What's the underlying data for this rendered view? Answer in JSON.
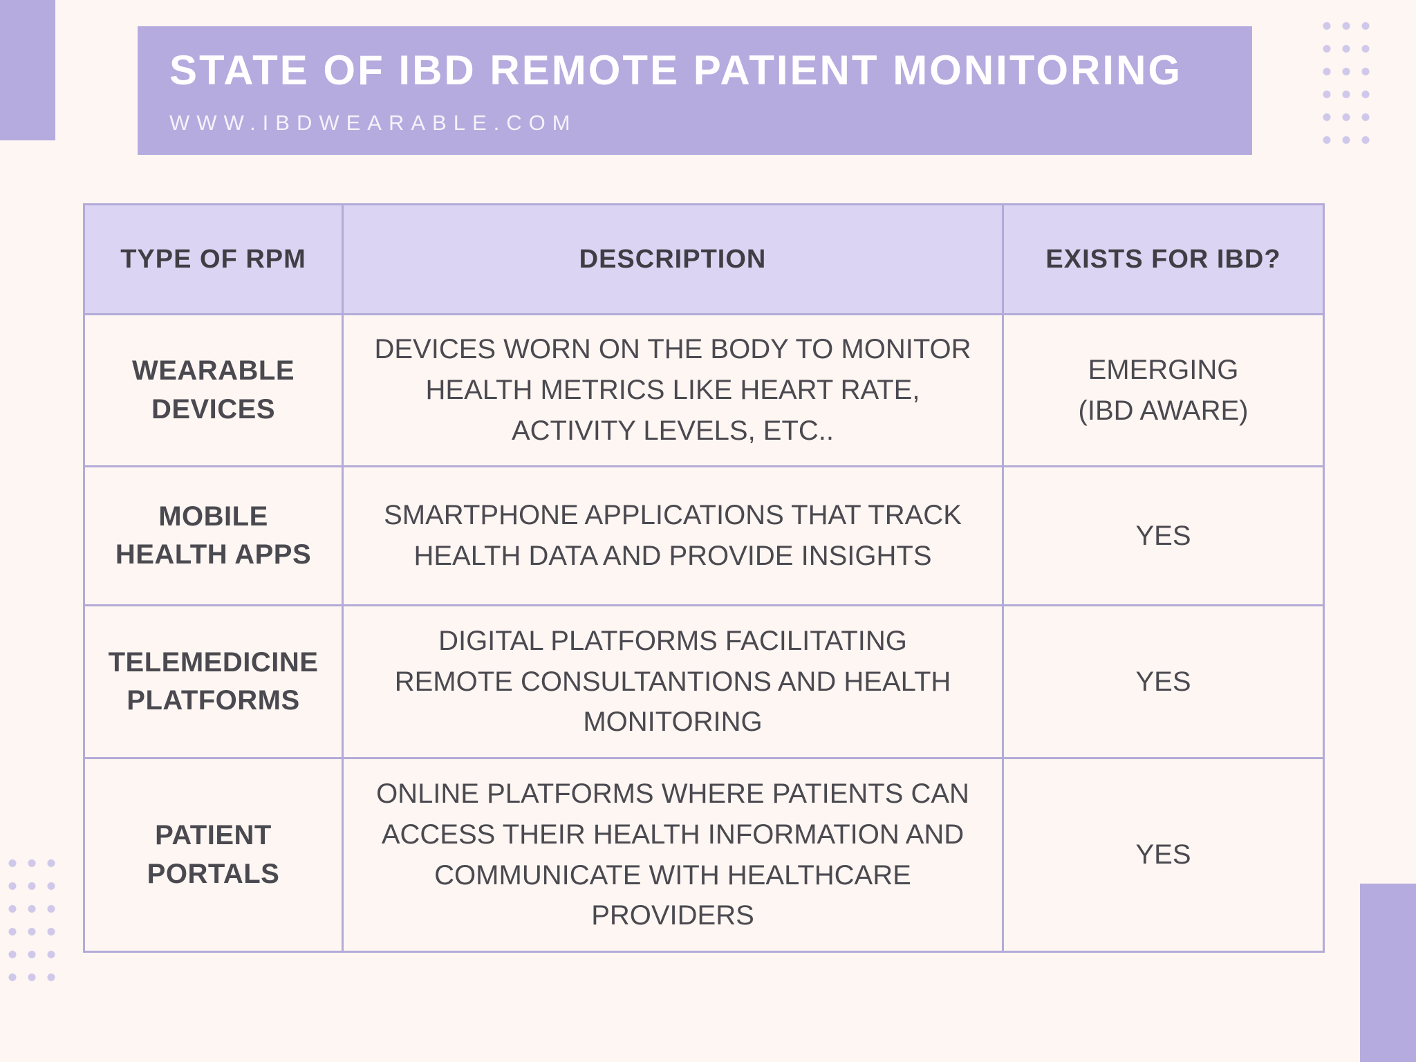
{
  "colors": {
    "accent_purple": "#b6abdf",
    "table_header_bg": "#dbd4f2",
    "page_bg": "#fdf6f2",
    "border": "#b4aad9",
    "title_text": "#ffffff",
    "body_text": "#4b4950",
    "dots": "#cfc8ea"
  },
  "header": {
    "title": "STATE OF IBD REMOTE PATIENT MONITORING",
    "website": "WWW.IBDWEARABLE.COM"
  },
  "table": {
    "columns": [
      "TYPE OF RPM",
      "DESCRIPTION",
      "EXISTS FOR IBD?"
    ],
    "rows": [
      {
        "type": "WEARABLE\nDEVICES",
        "description": "DEVICES WORN ON THE BODY TO MONITOR\nHEALTH METRICS LIKE HEART RATE,\nACTIVITY LEVELS, ETC..",
        "exists": "EMERGING\n(IBD AWARE)"
      },
      {
        "type": "MOBILE\nHEALTH APPS",
        "description": "SMARTPHONE APPLICATIONS THAT TRACK\nHEALTH DATA AND PROVIDE INSIGHTS",
        "exists": "YES"
      },
      {
        "type": "TELEMEDICINE\nPLATFORMS",
        "description": "DIGITAL PLATFORMS FACILITATING\nREMOTE CONSULTANTIONS AND HEALTH\nMONITORING",
        "exists": "YES"
      },
      {
        "type": "PATIENT\nPORTALS",
        "description": "ONLINE PLATFORMS WHERE PATIENTS CAN\nACCESS THEIR HEALTH INFORMATION AND\nCOMMUNICATE WITH HEALTHCARE\nPROVIDERS",
        "exists": "YES"
      }
    ]
  }
}
